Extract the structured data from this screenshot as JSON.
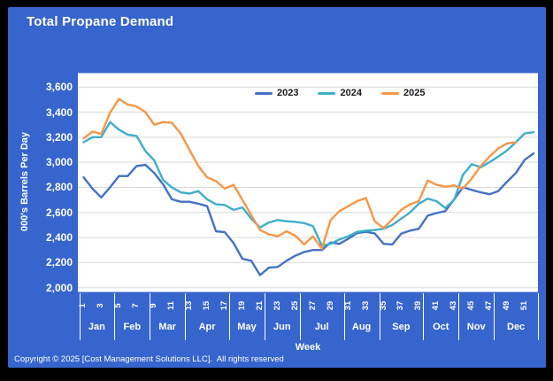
{
  "header": {
    "title": "Total Propane Demand"
  },
  "colors": {
    "frame": "#000000",
    "panel_bg": "#3665CD",
    "plot_bg": "#FFFFFF",
    "grid": "#D9D9D9",
    "axis_text": "#FFFFFF",
    "legend_text": "#1A1A1A"
  },
  "chart_data": {
    "type": "line",
    "title": "Total Propane Demand",
    "xlabel": "Week",
    "ylabel": "000's Barrels Per Day",
    "ylim": [
      2000,
      3600
    ],
    "ytick_step": 200,
    "yticks": [
      3600,
      3400,
      3200,
      3000,
      2800,
      2600,
      2400,
      2200,
      2000
    ],
    "grid": true,
    "legend_position": "top-center",
    "x_weeks": 52,
    "xtick_labels": [
      1,
      3,
      5,
      7,
      9,
      11,
      13,
      15,
      17,
      19,
      21,
      23,
      25,
      27,
      29,
      31,
      33,
      35,
      37,
      39,
      41,
      43,
      45,
      47,
      49,
      51
    ],
    "months": [
      {
        "label": "Jan",
        "start_week": 1,
        "end_week": 4
      },
      {
        "label": "Feb",
        "start_week": 5,
        "end_week": 8
      },
      {
        "label": "Mar",
        "start_week": 9,
        "end_week": 12
      },
      {
        "label": "Apr",
        "start_week": 13,
        "end_week": 17
      },
      {
        "label": "May",
        "start_week": 18,
        "end_week": 21
      },
      {
        "label": "Jun",
        "start_week": 22,
        "end_week": 25
      },
      {
        "label": "Jul",
        "start_week": 26,
        "end_week": 30
      },
      {
        "label": "Aug",
        "start_week": 31,
        "end_week": 34
      },
      {
        "label": "Sep",
        "start_week": 35,
        "end_week": 39
      },
      {
        "label": "Oct",
        "start_week": 40,
        "end_week": 43
      },
      {
        "label": "Nov",
        "start_week": 44,
        "end_week": 47
      },
      {
        "label": "Dec",
        "start_week": 48,
        "end_week": 52
      }
    ],
    "series": [
      {
        "name": "2023",
        "color": "#4472C4",
        "start_week": 1,
        "values": [
          2880,
          2790,
          2720,
          2800,
          2890,
          2890,
          2970,
          2980,
          2915,
          2825,
          2705,
          2685,
          2685,
          2670,
          2650,
          2450,
          2443,
          2355,
          2230,
          2215,
          2100,
          2160,
          2165,
          2215,
          2255,
          2285,
          2300,
          2300,
          2360,
          2350,
          2390,
          2435,
          2445,
          2433,
          2350,
          2345,
          2430,
          2455,
          2470,
          2575,
          2595,
          2610,
          2705,
          2800,
          2780,
          2760,
          2745,
          2770,
          2845,
          2915,
          3020,
          3070
        ]
      },
      {
        "name": "2024",
        "color": "#3EAECD",
        "start_week": 1,
        "values": [
          3160,
          3200,
          3200,
          3320,
          3260,
          3220,
          3210,
          3090,
          3015,
          2860,
          2800,
          2760,
          2750,
          2770,
          2705,
          2665,
          2660,
          2620,
          2640,
          2550,
          2480,
          2520,
          2540,
          2530,
          2525,
          2515,
          2490,
          2335,
          2350,
          2385,
          2410,
          2445,
          2455,
          2460,
          2470,
          2500,
          2550,
          2600,
          2670,
          2710,
          2690,
          2635,
          2700,
          2900,
          2985,
          2960,
          3000,
          3045,
          3095,
          3160,
          3230,
          3240
        ]
      },
      {
        "name": "2025",
        "color": "#F79646",
        "start_week": 1,
        "values": [
          3190,
          3245,
          3225,
          3395,
          3505,
          3460,
          3445,
          3400,
          3300,
          3320,
          3315,
          3230,
          3100,
          2970,
          2880,
          2850,
          2790,
          2820,
          2700,
          2580,
          2460,
          2425,
          2410,
          2450,
          2415,
          2345,
          2410,
          2310,
          2540,
          2610,
          2650,
          2690,
          2715,
          2530,
          2475,
          2545,
          2620,
          2665,
          2690,
          2855,
          2820,
          2805,
          2815,
          2790,
          2870,
          2970,
          3045,
          3110,
          3150,
          3160
        ]
      }
    ]
  },
  "footer": {
    "copyright": "Copyright © 2025 [Cost Management Solutions LLC].  All rights reserved"
  }
}
